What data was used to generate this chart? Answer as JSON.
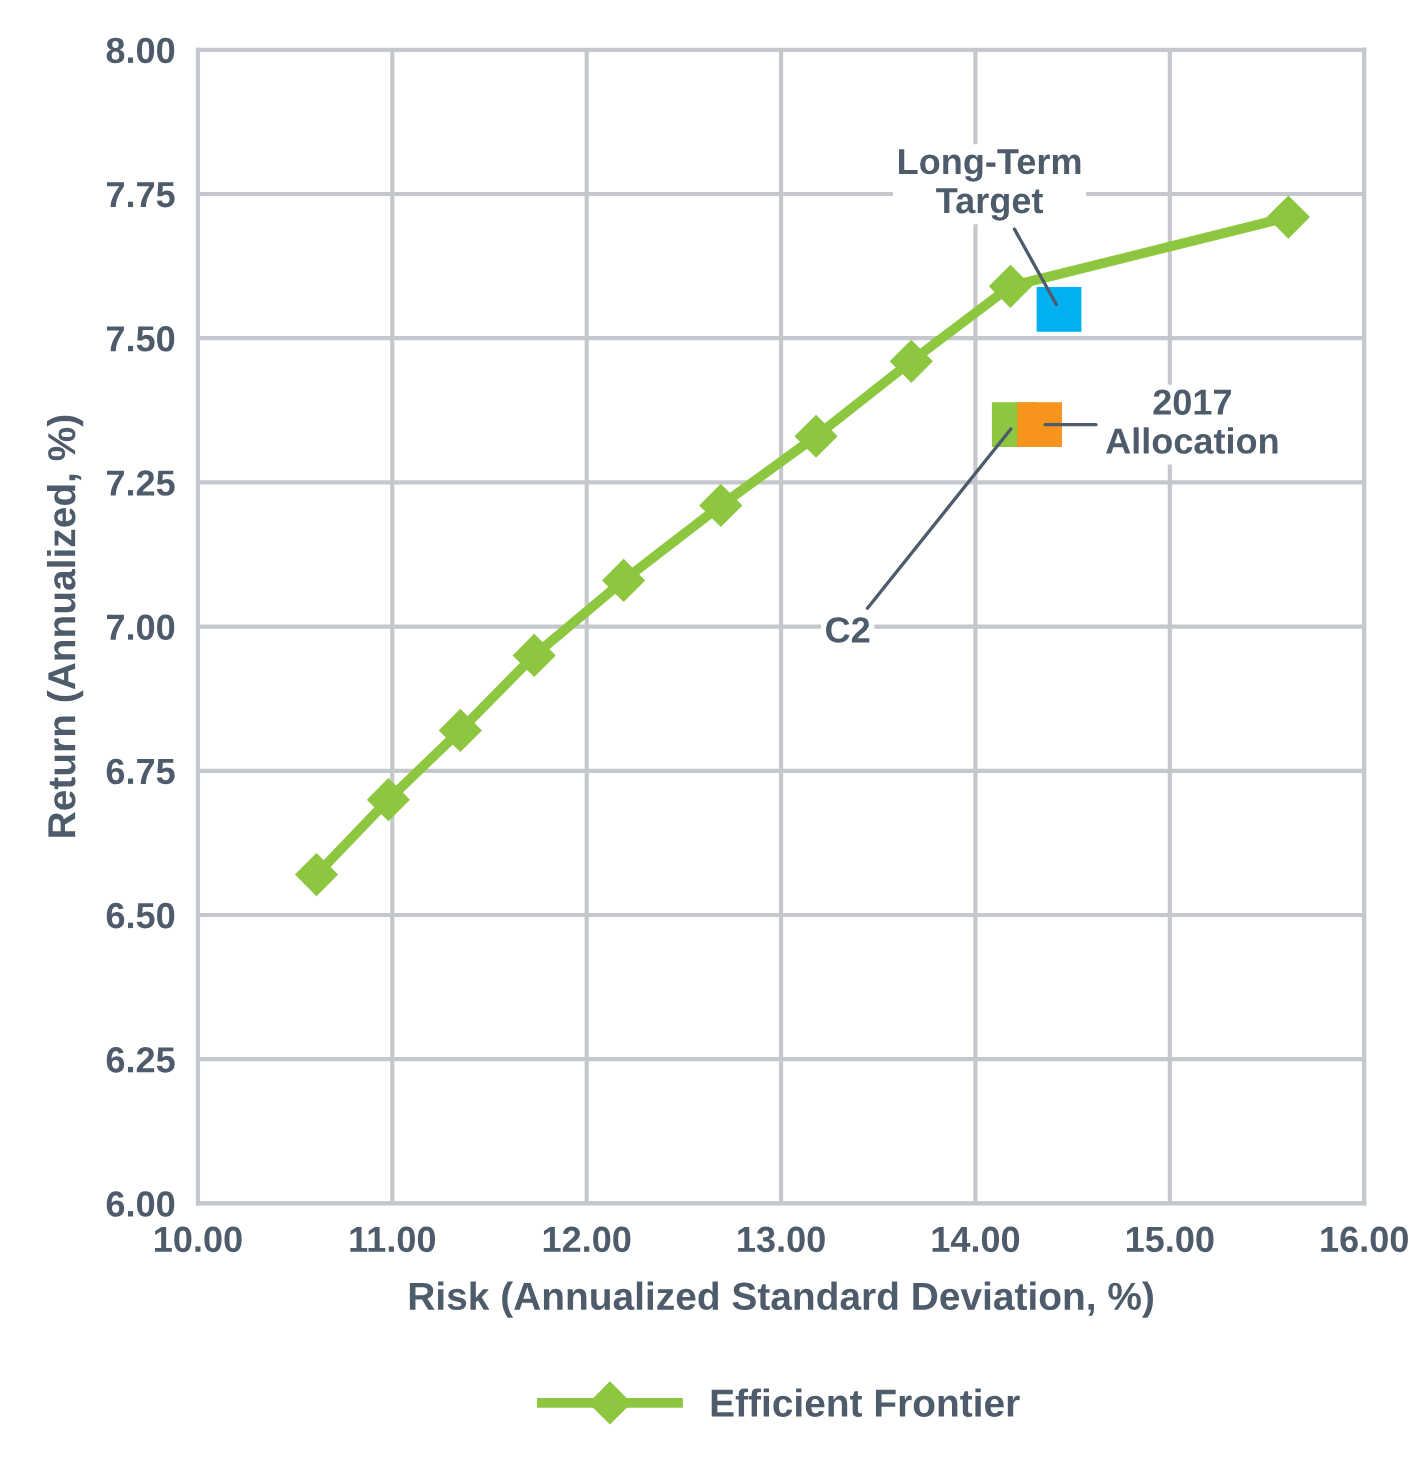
{
  "chart_data": {
    "type": "line",
    "xlabel": "Risk (Annualized Standard Deviation, %)",
    "ylabel": "Return (Annualized, %)",
    "series": [
      {
        "name": "Efficient Frontier",
        "color": "#8dc63f",
        "x": [
          10.61,
          10.98,
          11.35,
          11.73,
          12.19,
          12.69,
          13.18,
          13.67,
          14.18,
          15.61
        ],
        "values": [
          6.57,
          6.7,
          6.82,
          6.95,
          7.08,
          7.21,
          7.33,
          7.46,
          7.59,
          7.71
        ]
      },
      {
        "type": "scatter",
        "marker": "square",
        "color": "#00b0f0",
        "x": [
          14.43
        ],
        "values": [
          7.55
        ]
      },
      {
        "type": "scatter",
        "marker": "square",
        "color": "#8dc63f",
        "x": [
          14.2
        ],
        "values": [
          7.35
        ]
      },
      {
        "type": "scatter",
        "marker": "square",
        "color": "#f7941d",
        "x": [
          14.33
        ],
        "values": [
          7.35
        ]
      }
    ],
    "annotations": [
      {
        "text": "Long-Term\nTarget",
        "x": 14.43,
        "y": 7.55
      },
      {
        "text": "2017\nAllocation",
        "x": 14.33,
        "y": 7.35
      },
      {
        "text": "C2",
        "x": 14.2,
        "y": 7.35
      }
    ],
    "xlim": [
      10,
      16
    ],
    "xticks": [
      {
        "value": 10,
        "label": "10.00"
      },
      {
        "value": 11,
        "label": "11.00"
      },
      {
        "value": 12,
        "label": "12.00"
      },
      {
        "value": 13,
        "label": "13.00"
      },
      {
        "value": 14,
        "label": "14.00"
      },
      {
        "value": 15,
        "label": "15.00"
      },
      {
        "value": 16,
        "label": "16.00"
      }
    ],
    "ylim": [
      6,
      8
    ],
    "yticks": [
      {
        "value": 6,
        "label": "6.00"
      },
      {
        "value": 6.25,
        "label": "6.25"
      },
      {
        "value": 6.5,
        "label": "6.50"
      },
      {
        "value": 6.75,
        "label": "6.75"
      },
      {
        "value": 7,
        "label": "7.00"
      },
      {
        "value": 7.25,
        "label": "7.25"
      },
      {
        "value": 7.5,
        "label": "7.50"
      },
      {
        "value": 7.75,
        "label": "7.75"
      },
      {
        "value": 8,
        "label": "8.00"
      }
    ],
    "grid": true,
    "legend": "bottom",
    "marker": "diamond",
    "line_style": "solid"
  }
}
